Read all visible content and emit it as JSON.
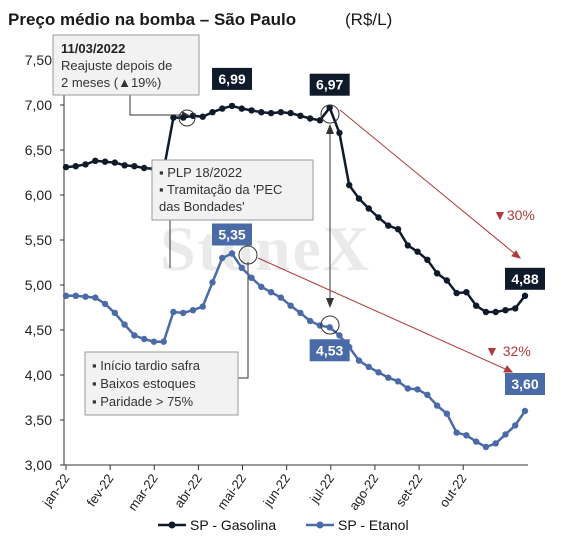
{
  "chart_data": {
    "type": "line",
    "title": "Preço médio na bomba – São Paulo",
    "title_unit": "(R$/L)",
    "ylim": [
      3.0,
      7.5
    ],
    "yticks": [
      "7,50",
      "7,00",
      "6,50",
      "6,00",
      "5,50",
      "5,00",
      "4,50",
      "4,00",
      "3,50",
      "3,00"
    ],
    "xtick_labels": [
      "jan-22",
      "fev-22",
      "mar-22",
      "abr-22",
      "mai-22",
      "jun-22",
      "jul-22",
      "ago-22",
      "set-22",
      "out-22"
    ],
    "grid": false,
    "legend_position": "bottom",
    "series": [
      {
        "name": "SP - Gasolina",
        "color": "#0f1a2b",
        "values": [
          6.31,
          6.32,
          6.34,
          6.38,
          6.37,
          6.36,
          6.33,
          6.32,
          6.3,
          6.29,
          6.28,
          6.86,
          6.86,
          6.88,
          6.87,
          6.92,
          6.96,
          6.99,
          6.96,
          6.94,
          6.92,
          6.91,
          6.92,
          6.91,
          6.88,
          6.85,
          6.83,
          6.97,
          6.69,
          6.11,
          5.96,
          5.85,
          5.75,
          5.66,
          5.62,
          5.44,
          5.37,
          5.28,
          5.13,
          5.05,
          4.91,
          4.92,
          4.77,
          4.7,
          4.7,
          4.72,
          4.74,
          4.88
        ]
      },
      {
        "name": "SP - Etanol",
        "color": "#4a6aa8",
        "values": [
          4.88,
          4.88,
          4.87,
          4.86,
          4.79,
          4.69,
          4.56,
          4.44,
          4.4,
          4.37,
          4.37,
          4.7,
          4.69,
          4.72,
          4.76,
          5.03,
          5.3,
          5.35,
          5.19,
          5.08,
          4.98,
          4.92,
          4.86,
          4.77,
          4.69,
          4.6,
          4.55,
          4.53,
          4.44,
          4.31,
          4.16,
          4.09,
          4.03,
          3.97,
          3.93,
          3.85,
          3.84,
          3.78,
          3.66,
          3.57,
          3.36,
          3.33,
          3.26,
          3.2,
          3.24,
          3.34,
          3.44,
          3.6
        ]
      }
    ],
    "value_labels": [
      {
        "text": "6,99",
        "series": 0,
        "index": 17
      },
      {
        "text": "6,97",
        "series": 0,
        "index": 27
      },
      {
        "text": "4,88",
        "series": 0,
        "index": 47
      },
      {
        "text": "5,35",
        "series": 1,
        "index": 17
      },
      {
        "text": "4,53",
        "series": 1,
        "index": 27
      },
      {
        "text": "3,60",
        "series": 1,
        "index": 47
      }
    ],
    "changes": [
      {
        "text": "▼30%",
        "series": 0
      },
      {
        "text": "▼ 32%",
        "series": 1
      }
    ],
    "annotations": [
      {
        "title": "11/03/2022",
        "lines": [
          "Reajuste depois de",
          "2 meses (▲19%)"
        ]
      },
      {
        "lines": [
          "▪ PLP 18/2022",
          "▪ Tramitação da 'PEC",
          "das Bondades'"
        ]
      },
      {
        "lines": [
          "▪ Início tardio safra",
          "▪ Baixos estoques",
          "▪ Paridade > 75%"
        ]
      }
    ],
    "watermark": "StoneX"
  }
}
